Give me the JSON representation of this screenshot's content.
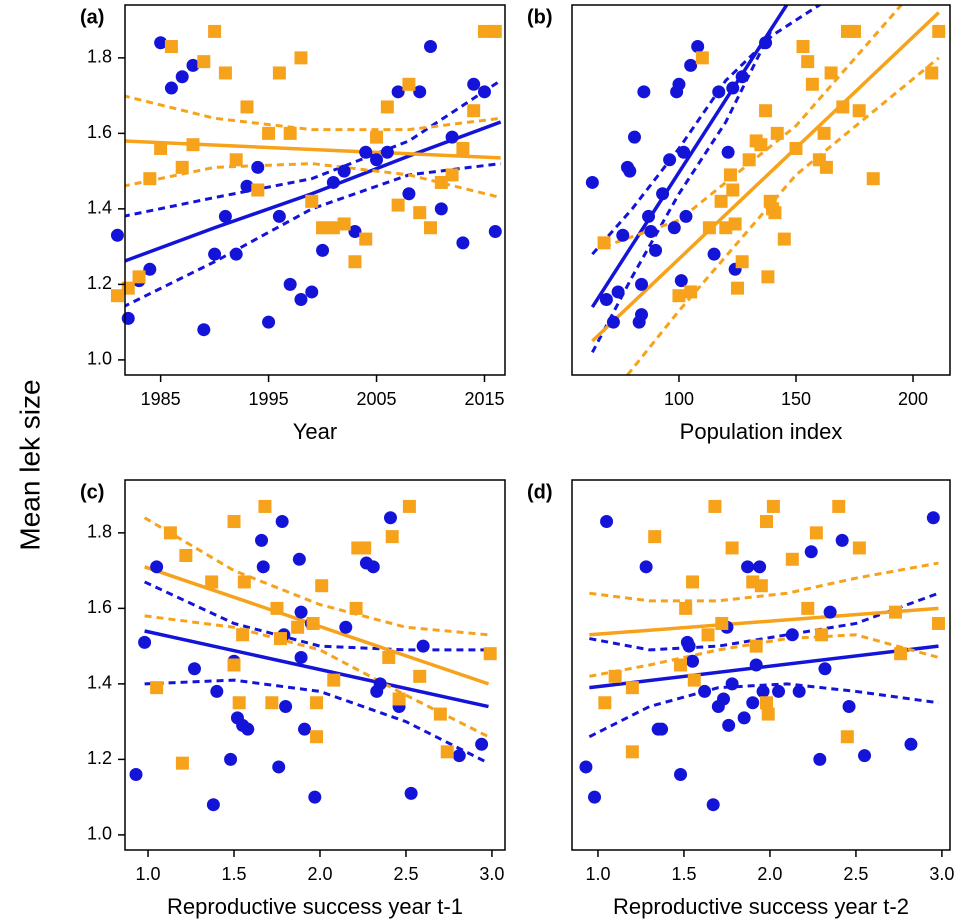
{
  "ylabel": "Mean lek size",
  "chart_data": [
    {
      "type": "scatter",
      "panel_label": "(a)",
      "xlabel": "Year",
      "xlim": [
        1981.7,
        2016.9
      ],
      "ylim": [
        0.96,
        1.94
      ],
      "xticks": [
        1985,
        1995,
        2005,
        2015
      ],
      "yticks": [
        {
          "value": 1.0,
          "label": "1.0"
        },
        1.2,
        1.4,
        1.6,
        1.8
      ],
      "series": [
        {
          "mode": "markers",
          "marker": "circle",
          "color": "#1414d9",
          "x": [
            1981,
            1982,
            1983,
            1984,
            1985,
            1986,
            1987,
            1988,
            1989,
            1990,
            1991,
            1992,
            1993,
            1994,
            1995,
            1996,
            1997,
            1998,
            1999,
            2000,
            2001,
            2002,
            2003,
            2004,
            2005,
            2006,
            2007,
            2008,
            2009,
            2010,
            2011,
            2012,
            2013,
            2014,
            2015,
            2016
          ],
          "values": [
            1.33,
            1.11,
            1.21,
            1.24,
            1.84,
            1.72,
            1.75,
            1.78,
            1.08,
            1.28,
            1.38,
            1.28,
            1.46,
            1.51,
            1.1,
            1.38,
            1.2,
            1.16,
            1.18,
            1.29,
            1.47,
            1.5,
            1.34,
            1.55,
            1.53,
            1.55,
            1.71,
            1.44,
            1.71,
            1.83,
            1.4,
            1.59,
            1.31,
            1.73,
            1.71,
            1.34
          ]
        },
        {
          "mode": "markers",
          "marker": "square",
          "color": "#f7a21b",
          "x": [
            1981,
            1982,
            1983,
            1984,
            1985,
            1986,
            1987,
            1988,
            1989,
            1990,
            1991,
            1992,
            1993,
            1994,
            1995,
            1996,
            1997,
            1998,
            1999,
            2000,
            2001,
            2002,
            2003,
            2004,
            2005,
            2006,
            2007,
            2008,
            2009,
            2010,
            2011,
            2012,
            2013,
            2014,
            2015,
            2016
          ],
          "values": [
            1.17,
            1.19,
            1.22,
            1.48,
            1.56,
            1.83,
            1.51,
            1.57,
            1.79,
            1.87,
            1.76,
            1.53,
            1.67,
            1.45,
            1.6,
            1.76,
            1.6,
            1.8,
            1.42,
            1.35,
            1.35,
            1.36,
            1.26,
            1.32,
            1.59,
            1.67,
            1.41,
            1.73,
            1.39,
            1.35,
            1.47,
            1.49,
            1.56,
            1.66,
            1.87,
            1.87
          ]
        },
        {
          "mode": "line",
          "color": "#1414d9",
          "x": [
            1981.5,
            1990,
            1999,
            2008,
            2016.5
          ],
          "values": [
            1.26,
            1.35,
            1.44,
            1.54,
            1.63
          ]
        },
        {
          "mode": "dashed",
          "color": "#1414d9",
          "x": [
            1981.5,
            1990,
            1999,
            2008,
            2016.5
          ],
          "values": [
            1.38,
            1.43,
            1.48,
            1.58,
            1.74
          ]
        },
        {
          "mode": "dashed",
          "color": "#1414d9",
          "x": [
            1981.5,
            1990,
            1999,
            2008,
            2016.5
          ],
          "values": [
            1.14,
            1.26,
            1.4,
            1.49,
            1.52
          ]
        },
        {
          "mode": "line",
          "color": "#f7a21b",
          "x": [
            1981.5,
            2016.5
          ],
          "values": [
            1.58,
            1.535
          ]
        },
        {
          "mode": "dashed",
          "color": "#f7a21b",
          "x": [
            1981.5,
            1990,
            1999,
            2008,
            2016.5
          ],
          "values": [
            1.7,
            1.64,
            1.61,
            1.61,
            1.64
          ]
        },
        {
          "mode": "dashed",
          "color": "#f7a21b",
          "x": [
            1981.5,
            1990,
            1999,
            2008,
            2016.5
          ],
          "values": [
            1.46,
            1.51,
            1.52,
            1.49,
            1.43
          ]
        }
      ]
    },
    {
      "type": "scatter",
      "panel_label": "(b)",
      "xlabel": "Population index",
      "xlim": [
        54.3,
        215.8
      ],
      "ylim": [
        0.96,
        1.94
      ],
      "xticks": [
        100,
        150,
        200
      ],
      "series": [
        {
          "mode": "markers",
          "marker": "circle",
          "color": "#1414d9",
          "x": [
            63,
            69,
            72,
            74,
            76,
            78,
            79,
            81,
            83,
            84,
            84,
            85,
            87,
            88,
            90,
            93,
            96,
            98,
            99,
            100,
            101,
            102,
            103,
            105,
            108,
            115,
            117,
            121,
            123,
            124,
            127,
            137
          ],
          "values": [
            1.47,
            1.16,
            1.1,
            1.18,
            1.33,
            1.51,
            1.5,
            1.59,
            1.1,
            1.12,
            1.2,
            1.71,
            1.38,
            1.34,
            1.29,
            1.44,
            1.53,
            1.35,
            1.71,
            1.73,
            1.21,
            1.55,
            1.38,
            1.78,
            1.83,
            1.28,
            1.71,
            1.55,
            1.72,
            1.24,
            1.75,
            1.84
          ]
        },
        {
          "mode": "markers",
          "marker": "square",
          "color": "#f7a21b",
          "x": [
            68,
            100,
            105,
            110,
            113,
            118,
            120,
            122,
            123,
            124,
            125,
            127,
            130,
            133,
            135,
            137,
            138,
            139,
            140,
            141,
            142,
            145,
            150,
            153,
            155,
            157,
            160,
            162,
            163,
            165,
            170,
            172,
            175,
            177,
            183,
            208,
            211
          ],
          "values": [
            1.31,
            1.17,
            1.18,
            1.8,
            1.35,
            1.42,
            1.35,
            1.49,
            1.45,
            1.36,
            1.19,
            1.26,
            1.53,
            1.58,
            1.57,
            1.66,
            1.22,
            1.42,
            1.4,
            1.39,
            1.6,
            1.32,
            1.56,
            1.83,
            1.79,
            1.73,
            1.53,
            1.6,
            1.51,
            1.76,
            1.67,
            1.87,
            1.87,
            1.66,
            1.48,
            1.76,
            1.87
          ]
        },
        {
          "mode": "line",
          "color": "#1414d9",
          "x": [
            63,
            146
          ],
          "values": [
            1.14,
            1.94
          ]
        },
        {
          "mode": "dashed",
          "color": "#1414d9",
          "x": [
            63,
            80,
            100,
            120,
            140,
            165
          ],
          "values": [
            1.28,
            1.4,
            1.56,
            1.74,
            1.86,
            1.96
          ]
        },
        {
          "mode": "dashed",
          "color": "#1414d9",
          "x": [
            63,
            80,
            100,
            120,
            140
          ],
          "values": [
            1.02,
            1.22,
            1.44,
            1.63,
            1.88
          ]
        },
        {
          "mode": "line",
          "color": "#f7a21b",
          "x": [
            63,
            211
          ],
          "values": [
            1.05,
            1.92
          ]
        },
        {
          "mode": "dashed",
          "color": "#f7a21b",
          "x": [
            68,
            100,
            150,
            195
          ],
          "values": [
            1.3,
            1.37,
            1.62,
            1.94
          ]
        },
        {
          "mode": "dashed",
          "color": "#f7a21b",
          "x": [
            78,
            100,
            150,
            211
          ],
          "values": [
            0.96,
            1.13,
            1.49,
            1.8
          ]
        }
      ]
    },
    {
      "type": "scatter",
      "panel_label": "(c)",
      "xlabel": "Reproductive success year t-1",
      "xlim": [
        0.866,
        3.076
      ],
      "ylim": [
        0.96,
        1.94
      ],
      "xticks": [
        {
          "value": 1.0,
          "label": "1.0"
        },
        1.5,
        {
          "value": 2.0,
          "label": "2.0"
        },
        2.5,
        {
          "value": 3.0,
          "label": "3.0"
        }
      ],
      "yticks": [
        {
          "value": 1.0,
          "label": "1.0"
        },
        1.2,
        1.4,
        1.6,
        1.8
      ],
      "series": [
        {
          "mode": "markers",
          "marker": "circle",
          "color": "#1414d9",
          "x": [
            0.93,
            0.98,
            1.05,
            1.27,
            1.38,
            1.4,
            1.48,
            1.5,
            1.52,
            1.55,
            1.58,
            1.66,
            1.67,
            1.78,
            1.79,
            1.8,
            1.76,
            1.88,
            1.89,
            1.89,
            1.91,
            1.95,
            1.97,
            2.15,
            2.27,
            2.31,
            2.33,
            2.35,
            2.41,
            2.46,
            2.53,
            2.6,
            2.81,
            2.94
          ],
          "values": [
            1.16,
            1.51,
            1.71,
            1.44,
            1.08,
            1.38,
            1.2,
            1.46,
            1.31,
            1.29,
            1.28,
            1.78,
            1.71,
            1.83,
            1.53,
            1.34,
            1.18,
            1.73,
            1.59,
            1.47,
            1.28,
            1.56,
            1.1,
            1.55,
            1.72,
            1.71,
            1.38,
            1.4,
            1.84,
            1.34,
            1.11,
            1.5,
            1.21,
            1.24
          ]
        },
        {
          "mode": "markers",
          "marker": "square",
          "color": "#f7a21b",
          "x": [
            1.05,
            1.13,
            1.2,
            1.22,
            1.37,
            1.5,
            1.5,
            1.53,
            1.55,
            1.56,
            1.68,
            1.72,
            1.75,
            1.77,
            1.87,
            1.96,
            1.98,
            1.98,
            2.01,
            2.08,
            2.21,
            2.22,
            2.26,
            2.4,
            2.42,
            2.46,
            2.52,
            2.58,
            2.7,
            2.74,
            2.99
          ],
          "values": [
            1.39,
            1.8,
            1.19,
            1.74,
            1.67,
            1.83,
            1.45,
            1.35,
            1.53,
            1.67,
            1.87,
            1.35,
            1.6,
            1.52,
            1.55,
            1.56,
            1.26,
            1.35,
            1.66,
            1.41,
            1.6,
            1.76,
            1.76,
            1.47,
            1.79,
            1.36,
            1.87,
            1.42,
            1.32,
            1.22,
            1.48
          ]
        },
        {
          "mode": "line",
          "color": "#1414d9",
          "x": [
            0.98,
            2.98
          ],
          "values": [
            1.54,
            1.34
          ]
        },
        {
          "mode": "dashed",
          "color": "#1414d9",
          "x": [
            0.98,
            1.5,
            2,
            2.5,
            2.98
          ],
          "values": [
            1.67,
            1.56,
            1.5,
            1.49,
            1.49
          ]
        },
        {
          "mode": "dashed",
          "color": "#1414d9",
          "x": [
            0.98,
            1.5,
            2,
            2.5,
            2.98
          ],
          "values": [
            1.4,
            1.41,
            1.38,
            1.3,
            1.19
          ]
        },
        {
          "mode": "line",
          "color": "#f7a21b",
          "x": [
            0.98,
            2.98
          ],
          "values": [
            1.71,
            1.4
          ]
        },
        {
          "mode": "dashed",
          "color": "#f7a21b",
          "x": [
            0.98,
            1.5,
            2,
            2.5,
            2.98
          ],
          "values": [
            1.84,
            1.7,
            1.61,
            1.55,
            1.53
          ]
        },
        {
          "mode": "dashed",
          "color": "#f7a21b",
          "x": [
            0.98,
            1.5,
            2,
            2.5,
            2.98
          ],
          "values": [
            1.58,
            1.55,
            1.49,
            1.37,
            1.26
          ]
        }
      ]
    },
    {
      "type": "scatter",
      "panel_label": "(d)",
      "xlabel": "Reproductive success year t-2",
      "xlim": [
        0.849,
        3.047
      ],
      "ylim": [
        0.96,
        1.94
      ],
      "xticks": [
        {
          "value": 1.0,
          "label": "1.0"
        },
        1.5,
        {
          "value": 2.0,
          "label": "2.0"
        },
        2.5,
        {
          "value": 3.0,
          "label": "3.0"
        }
      ],
      "series": [
        {
          "mode": "markers",
          "marker": "circle",
          "color": "#1414d9",
          "x": [
            0.93,
            0.98,
            1.05,
            1.28,
            1.35,
            1.37,
            1.48,
            1.52,
            1.53,
            1.55,
            1.62,
            1.67,
            1.7,
            1.73,
            1.75,
            1.76,
            1.78,
            1.85,
            1.87,
            1.9,
            1.92,
            1.94,
            1.96,
            2.05,
            2.13,
            2.17,
            2.24,
            2.29,
            2.32,
            2.35,
            2.42,
            2.46,
            2.55,
            2.82,
            2.95
          ],
          "values": [
            1.18,
            1.1,
            1.83,
            1.71,
            1.28,
            1.28,
            1.16,
            1.51,
            1.5,
            1.46,
            1.38,
            1.08,
            1.34,
            1.36,
            1.55,
            1.29,
            1.4,
            1.31,
            1.71,
            1.35,
            1.45,
            1.71,
            1.38,
            1.38,
            1.53,
            1.38,
            1.75,
            1.2,
            1.44,
            1.59,
            1.78,
            1.34,
            1.21,
            1.24,
            1.84
          ]
        },
        {
          "mode": "markers",
          "marker": "square",
          "color": "#f7a21b",
          "x": [
            1.04,
            1.1,
            1.2,
            1.2,
            1.33,
            1.48,
            1.51,
            1.55,
            1.56,
            1.64,
            1.68,
            1.72,
            1.78,
            1.9,
            1.92,
            1.95,
            1.98,
            1.98,
            1.99,
            2.02,
            2.13,
            2.22,
            2.27,
            2.3,
            2.4,
            2.45,
            2.52,
            2.73,
            2.76,
            2.98
          ],
          "values": [
            1.35,
            1.42,
            1.22,
            1.39,
            1.79,
            1.45,
            1.6,
            1.67,
            1.41,
            1.53,
            1.87,
            1.56,
            1.76,
            1.67,
            1.5,
            1.66,
            1.83,
            1.35,
            1.32,
            1.87,
            1.73,
            1.6,
            1.8,
            1.53,
            1.87,
            1.26,
            1.76,
            1.59,
            1.48,
            1.56
          ]
        },
        {
          "mode": "line",
          "color": "#1414d9",
          "x": [
            0.95,
            2.98
          ],
          "values": [
            1.39,
            1.5
          ]
        },
        {
          "mode": "dashed",
          "color": "#1414d9",
          "x": [
            0.95,
            1.3,
            1.7,
            2.1,
            2.5,
            2.98
          ],
          "values": [
            1.52,
            1.49,
            1.5,
            1.53,
            1.56,
            1.64
          ]
        },
        {
          "mode": "dashed",
          "color": "#1414d9",
          "x": [
            0.95,
            1.3,
            1.7,
            2.1,
            2.5,
            2.98
          ],
          "values": [
            1.26,
            1.34,
            1.39,
            1.4,
            1.38,
            1.35
          ]
        },
        {
          "mode": "line",
          "color": "#f7a21b",
          "x": [
            0.95,
            2.98
          ],
          "values": [
            1.53,
            1.6
          ]
        },
        {
          "mode": "dashed",
          "color": "#f7a21b",
          "x": [
            0.95,
            1.3,
            1.7,
            2.1,
            2.5,
            2.98
          ],
          "values": [
            1.64,
            1.62,
            1.62,
            1.64,
            1.68,
            1.72
          ]
        },
        {
          "mode": "dashed",
          "color": "#f7a21b",
          "x": [
            0.95,
            1.3,
            1.7,
            2.1,
            2.5,
            2.98
          ],
          "values": [
            1.42,
            1.45,
            1.49,
            1.52,
            1.53,
            1.47
          ]
        }
      ]
    }
  ]
}
